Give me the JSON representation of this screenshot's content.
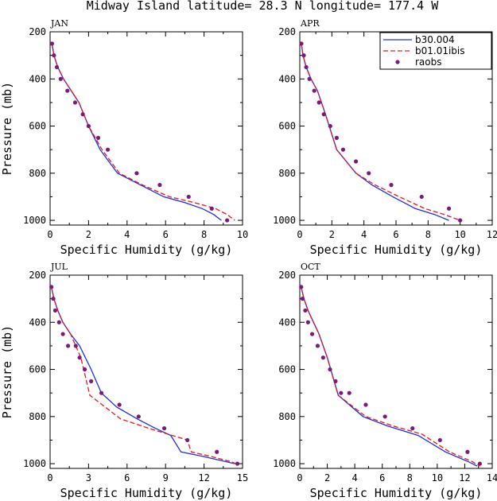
{
  "title": "Midway Island  latitude= 28.3 N longitude= 177.4 W",
  "colors": {
    "b30_004": "#1f2fd6",
    "b01_01ibis": "#e8141e",
    "raobs": "#7a1a7a"
  },
  "chart_data": [
    {
      "type": "line",
      "panel": "JAN",
      "xlabel": "Specific Humidity (g/kg)",
      "ylabel": "Pressure (mb)",
      "xlim": [
        0,
        10
      ],
      "ylim": [
        1020,
        200
      ],
      "xticks": [
        0,
        2,
        4,
        6,
        8,
        10
      ],
      "yticks": [
        200,
        400,
        600,
        800,
        1000
      ],
      "series": [
        {
          "name": "b30.004",
          "style": "solid",
          "x": [
            0.1,
            0.2,
            0.4,
            0.7,
            1.1,
            1.5,
            2.0,
            2.6,
            3.5,
            4.7,
            5.9,
            7.0,
            7.9,
            8.5,
            8.9
          ],
          "y": [
            250,
            300,
            350,
            400,
            450,
            500,
            600,
            700,
            800,
            850,
            900,
            925,
            950,
            975,
            1000
          ]
        },
        {
          "name": "b01.01ibis",
          "style": "dashed",
          "x": [
            0.1,
            0.2,
            0.4,
            0.7,
            1.1,
            1.5,
            2.0,
            2.7,
            3.6,
            4.8,
            6.2,
            7.5,
            8.6,
            9.2,
            9.6
          ],
          "y": [
            250,
            300,
            350,
            400,
            450,
            500,
            600,
            700,
            800,
            850,
            900,
            925,
            950,
            975,
            1000
          ]
        },
        {
          "name": "raobs",
          "style": "markers",
          "x": [
            0.1,
            0.2,
            0.35,
            0.55,
            0.9,
            1.3,
            1.7,
            2.0,
            2.5,
            3.0,
            4.5,
            5.7,
            7.2,
            8.4,
            9.2
          ],
          "y": [
            250,
            300,
            350,
            400,
            450,
            500,
            550,
            600,
            650,
            700,
            800,
            850,
            900,
            950,
            1000
          ]
        }
      ]
    },
    {
      "type": "line",
      "panel": "APR",
      "xlabel": "Specific Humidity (g/kg)",
      "ylabel": "Pressure (mb)",
      "xlim": [
        0,
        12
      ],
      "ylim": [
        1020,
        200
      ],
      "xticks": [
        0,
        2,
        4,
        6,
        8,
        10,
        12
      ],
      "yticks": [
        200,
        400,
        600,
        800,
        1000
      ],
      "legend": "top-right",
      "series": [
        {
          "name": "b30.004",
          "style": "solid",
          "x": [
            0.1,
            0.2,
            0.4,
            0.7,
            1.1,
            1.6,
            2.3,
            3.5,
            4.5,
            5.8,
            7.2,
            8.4,
            9.3
          ],
          "y": [
            250,
            300,
            350,
            400,
            450,
            550,
            700,
            800,
            850,
            900,
            950,
            975,
            1000
          ]
        },
        {
          "name": "b01.01ibis",
          "style": "dashed",
          "x": [
            0.1,
            0.2,
            0.4,
            0.7,
            1.1,
            1.6,
            2.3,
            3.5,
            4.7,
            6.2,
            7.8,
            9.0,
            10.0
          ],
          "y": [
            250,
            300,
            350,
            400,
            450,
            550,
            700,
            800,
            850,
            900,
            950,
            975,
            1000
          ]
        },
        {
          "name": "raobs",
          "style": "markers",
          "x": [
            0.1,
            0.25,
            0.4,
            0.6,
            0.9,
            1.2,
            1.5,
            1.9,
            2.3,
            2.7,
            3.5,
            4.3,
            5.7,
            7.6,
            9.3,
            10.0
          ],
          "y": [
            250,
            300,
            350,
            400,
            450,
            500,
            550,
            600,
            650,
            700,
            750,
            800,
            850,
            900,
            950,
            1000
          ]
        }
      ]
    },
    {
      "type": "line",
      "panel": "JUL",
      "xlabel": "Specific Humidity (g/kg)",
      "ylabel": "Pressure (mb)",
      "xlim": [
        0,
        15
      ],
      "ylim": [
        1020,
        200
      ],
      "xticks": [
        0,
        3,
        6,
        9,
        12,
        15
      ],
      "yticks": [
        200,
        400,
        600,
        800,
        1000
      ],
      "series": [
        {
          "name": "b30.004",
          "style": "solid",
          "x": [
            0.1,
            0.3,
            0.6,
            1.0,
            1.6,
            2.3,
            3.2,
            4.0,
            5.2,
            6.8,
            8.2,
            9.4,
            10.2,
            12.0,
            13.6,
            14.4
          ],
          "y": [
            250,
            300,
            350,
            400,
            450,
            500,
            600,
            700,
            760,
            810,
            850,
            880,
            950,
            970,
            990,
            1000
          ]
        },
        {
          "name": "b01.01ibis",
          "style": "dashed",
          "x": [
            0.1,
            0.3,
            0.6,
            1.0,
            1.6,
            2.4,
            3.1,
            5.5,
            7.7,
            10.7,
            11.0,
            12.6,
            14.0,
            14.5
          ],
          "y": [
            250,
            300,
            350,
            400,
            450,
            550,
            710,
            810,
            850,
            900,
            950,
            970,
            990,
            1000
          ]
        },
        {
          "name": "raobs",
          "style": "markers",
          "x": [
            0.1,
            0.25,
            0.4,
            0.7,
            1.0,
            1.4,
            2.0,
            2.3,
            2.7,
            3.2,
            4.0,
            5.4,
            6.9,
            8.9,
            10.7,
            13.0,
            14.6
          ],
          "y": [
            250,
            300,
            350,
            400,
            450,
            500,
            500,
            550,
            600,
            650,
            700,
            750,
            800,
            850,
            900,
            950,
            1000
          ]
        }
      ]
    },
    {
      "type": "line",
      "panel": "OCT",
      "xlabel": "Specific Humidity (g/kg)",
      "ylabel": "Pressure (mb)",
      "xlim": [
        0,
        14
      ],
      "ylim": [
        1020,
        200
      ],
      "xticks": [
        0,
        2,
        4,
        6,
        8,
        10,
        12,
        14
      ],
      "yticks": [
        200,
        400,
        600,
        800,
        1000
      ],
      "series": [
        {
          "name": "b30.004",
          "style": "solid",
          "x": [
            0.1,
            0.3,
            0.6,
            1.0,
            1.4,
            2.0,
            2.8,
            4.6,
            6.4,
            8.6,
            10.6,
            12.2,
            12.9
          ],
          "y": [
            250,
            300,
            350,
            400,
            450,
            550,
            710,
            800,
            840,
            880,
            950,
            990,
            1010
          ]
        },
        {
          "name": "b01.01ibis",
          "style": "dashed",
          "x": [
            0.1,
            0.3,
            0.6,
            1.0,
            1.4,
            2.0,
            2.8,
            4.8,
            6.8,
            8.9,
            10.9,
            12.5,
            13.1
          ],
          "y": [
            250,
            300,
            350,
            400,
            450,
            550,
            710,
            800,
            840,
            875,
            950,
            990,
            1010
          ]
        },
        {
          "name": "raobs",
          "style": "markers",
          "x": [
            0.1,
            0.2,
            0.4,
            0.6,
            0.9,
            1.3,
            1.7,
            2.2,
            2.6,
            3.0,
            3.6,
            4.8,
            6.2,
            8.2,
            10.2,
            12.2,
            13.1
          ],
          "y": [
            250,
            300,
            350,
            400,
            450,
            500,
            550,
            600,
            650,
            700,
            700,
            750,
            800,
            850,
            900,
            950,
            1000
          ]
        }
      ]
    }
  ]
}
